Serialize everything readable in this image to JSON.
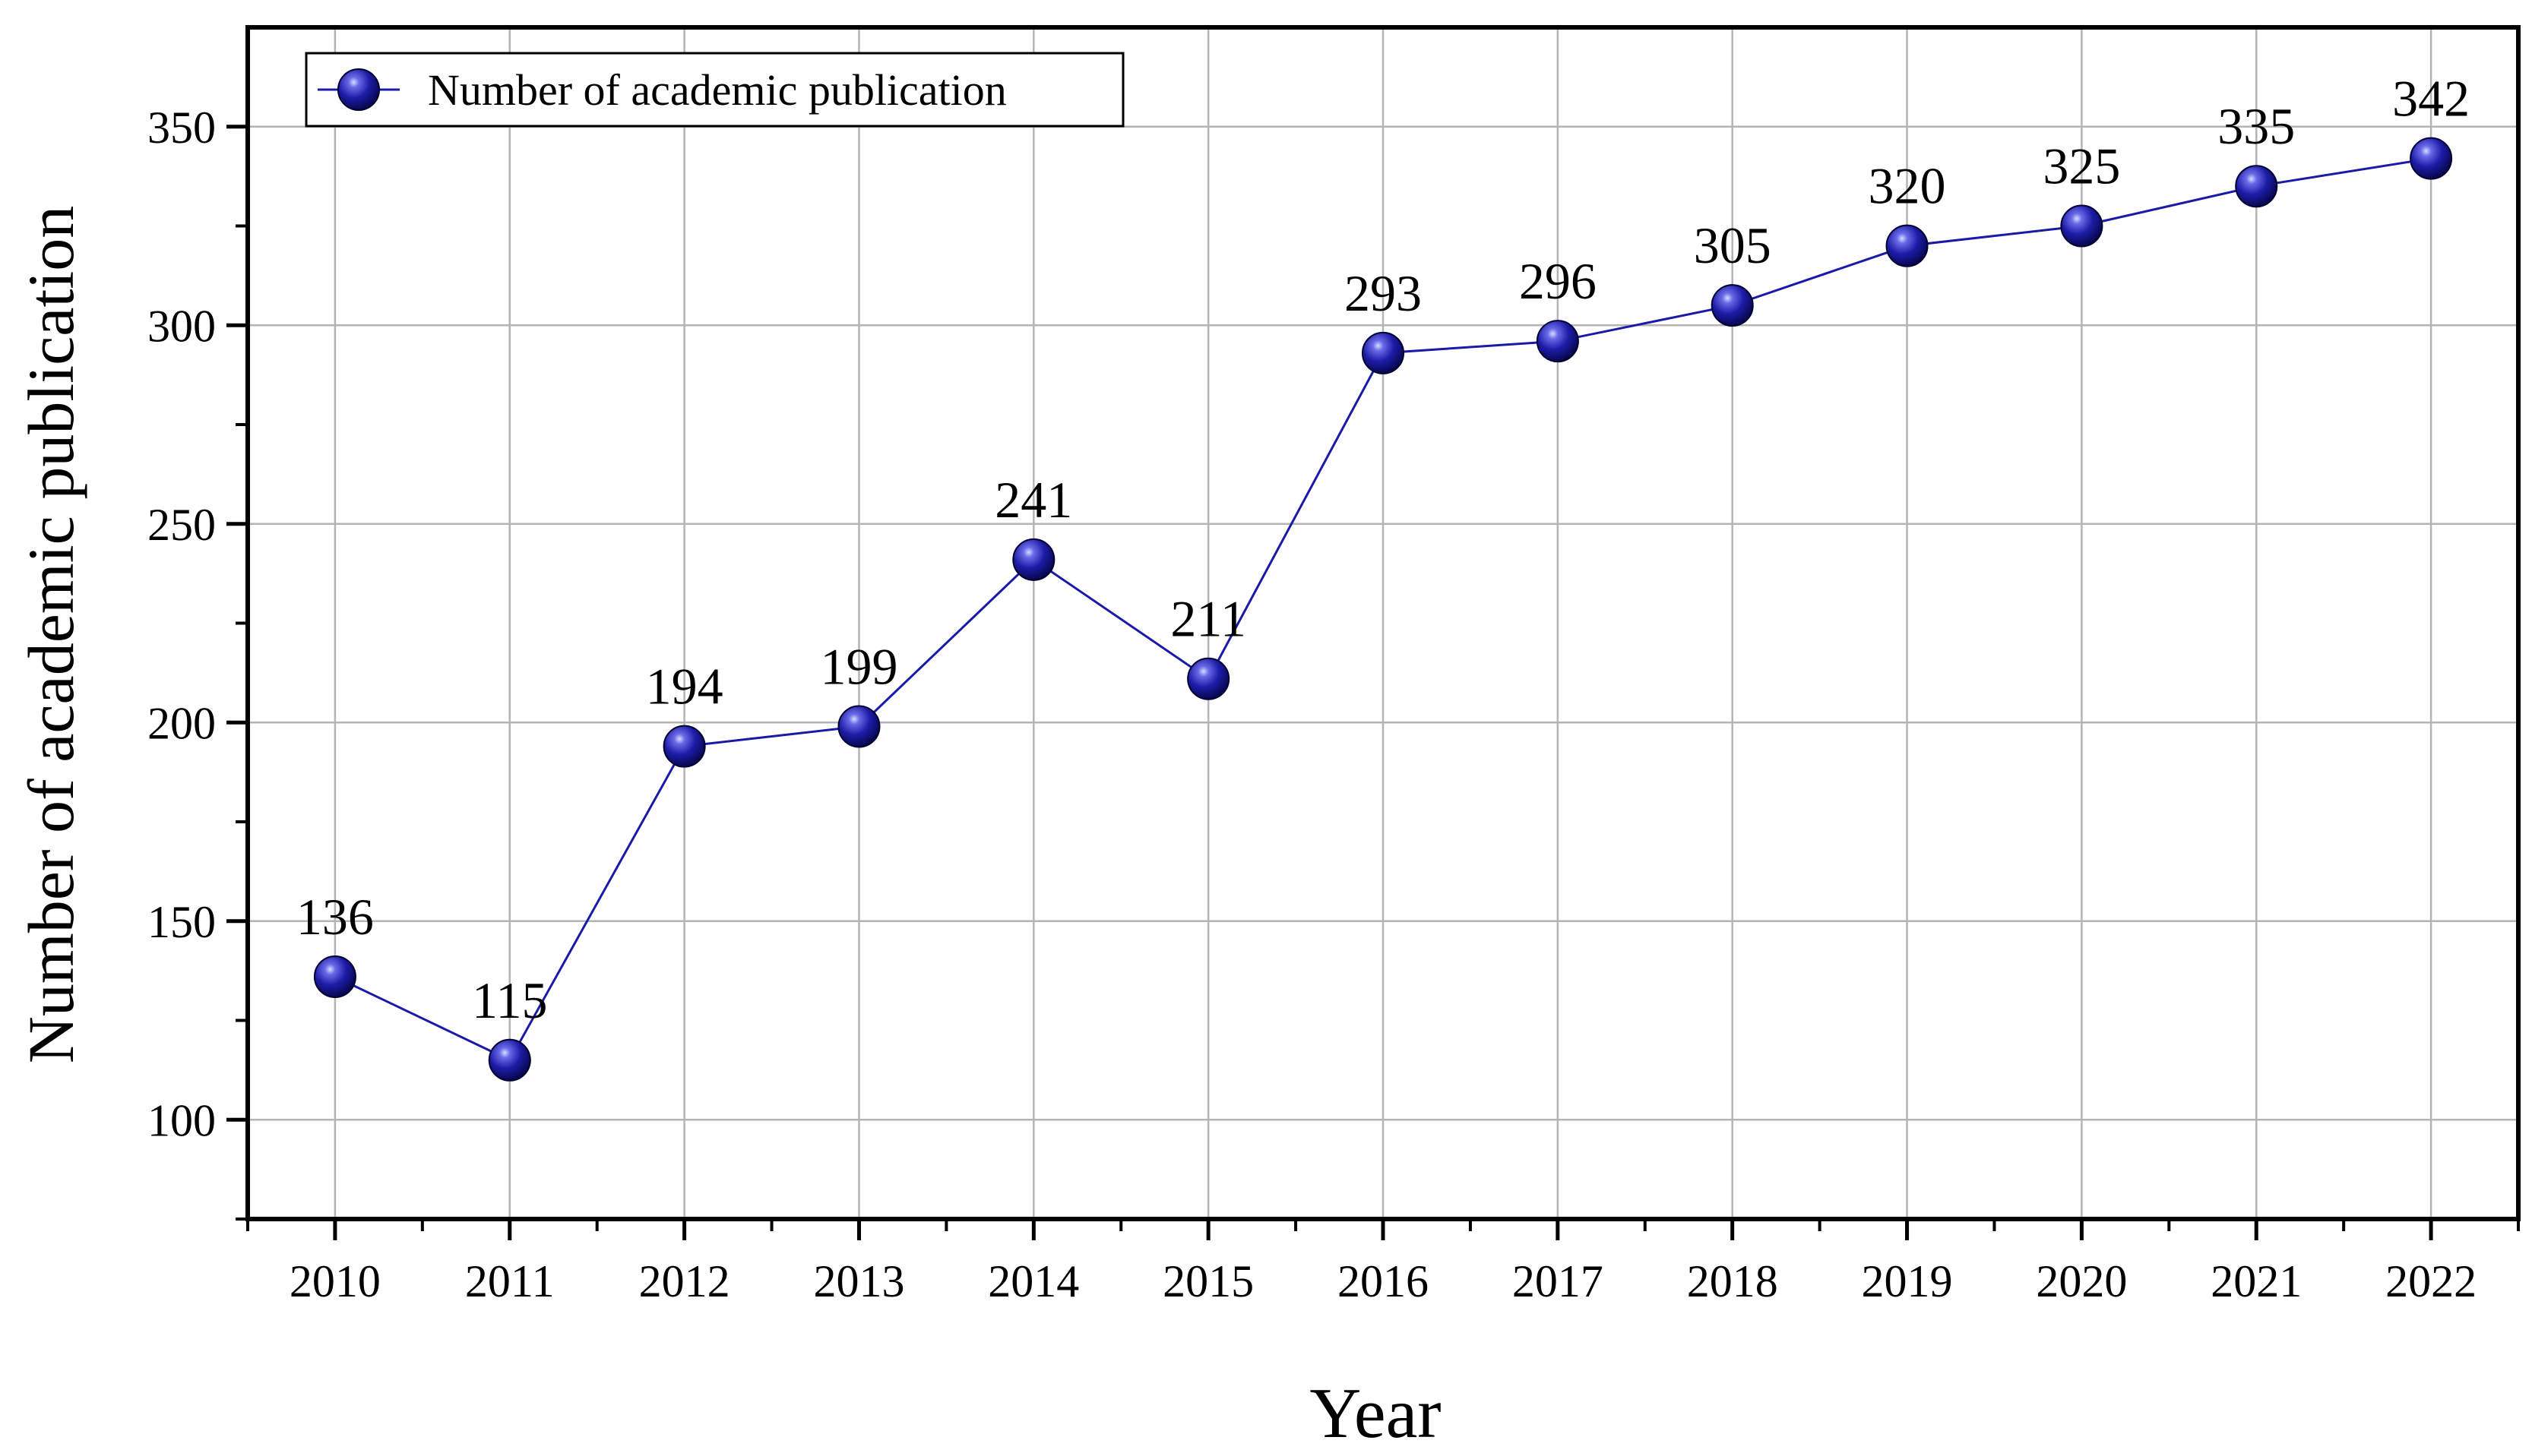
{
  "chart_data": {
    "type": "line",
    "x": [
      2010,
      2011,
      2012,
      2013,
      2014,
      2015,
      2016,
      2017,
      2018,
      2019,
      2020,
      2021,
      2022
    ],
    "series": [
      {
        "name": "Number of academic publication",
        "values": [
          136,
          115,
          194,
          199,
          241,
          211,
          293,
          296,
          305,
          320,
          325,
          335,
          342
        ],
        "color": "#1a1aa8",
        "marker": "sphere"
      }
    ],
    "xlabel": "Year",
    "ylabel": "Number of academic publication",
    "ylim": [
      75,
      375
    ],
    "xlim": [
      2009.5,
      2022.5
    ],
    "yticks": [
      100,
      150,
      200,
      250,
      300,
      350
    ],
    "ytick_labels": [
      "100",
      "150",
      "200",
      "250",
      "300",
      "350"
    ],
    "xtick_labels": [
      "2010",
      "2011",
      "2012",
      "2013",
      "2014",
      "2015",
      "2016",
      "2017",
      "2018",
      "2019",
      "2020",
      "2021",
      "2022"
    ],
    "data_labels": [
      "136",
      "115",
      "194",
      "199",
      "241",
      "211",
      "293",
      "296",
      "305",
      "320",
      "325",
      "335",
      "342"
    ],
    "grid": true,
    "legend_position": "top-left"
  }
}
